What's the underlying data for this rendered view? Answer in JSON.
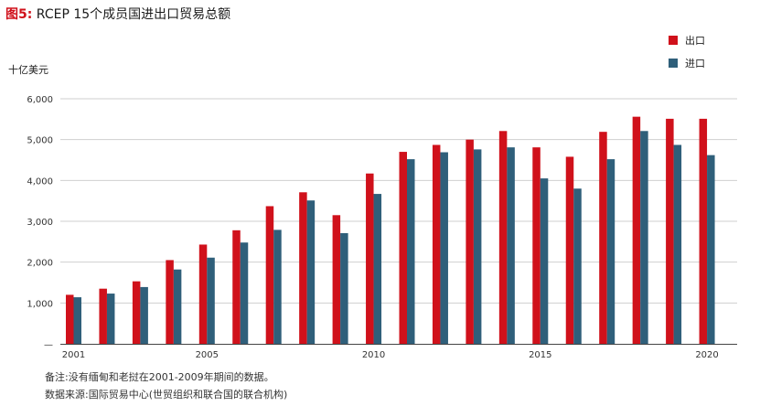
{
  "title": {
    "figure_label": "图5:",
    "text": "RCEP 15个成员国进出口贸易总额"
  },
  "legend": [
    {
      "label": "出口",
      "color": "#d0111b"
    },
    {
      "label": "进口",
      "color": "#2f5f7a"
    }
  ],
  "notes": [
    "备注:没有缅甸和老挝在2001-2009年期间的数据。",
    "数据来源:国际贸易中心(世贸组织和联合国的联合机构)"
  ],
  "chart_data": {
    "type": "bar",
    "ylabel": "十亿美元",
    "ylim": [
      0,
      6000
    ],
    "yticks": [
      "—",
      "1,000",
      "2,000",
      "3,000",
      "4,000",
      "5,000",
      "6,000"
    ],
    "xticks": [
      "2001",
      "2005",
      "2010",
      "2015",
      "2020"
    ],
    "categories": [
      "2001",
      "2002",
      "2003",
      "2004",
      "2005",
      "2006",
      "2007",
      "2008",
      "2009",
      "2010",
      "2011",
      "2012",
      "2013",
      "2014",
      "2015",
      "2016",
      "2017",
      "2018",
      "2019",
      "2020"
    ],
    "series": [
      {
        "name": "出口",
        "color": "#d0111b",
        "values": [
          1200,
          1350,
          1530,
          2050,
          2430,
          2780,
          3370,
          3710,
          3150,
          4170,
          4700,
          4870,
          5000,
          5210,
          4810,
          4580,
          5190,
          5560,
          5510,
          5510
        ]
      },
      {
        "name": "进口",
        "color": "#2f5f7a",
        "values": [
          1140,
          1230,
          1390,
          1820,
          2110,
          2480,
          2790,
          3510,
          2710,
          3670,
          4520,
          4690,
          4760,
          4810,
          4050,
          3800,
          4520,
          5210,
          4870,
          4620
        ]
      }
    ],
    "grid": true,
    "legend_position": "top-right"
  }
}
